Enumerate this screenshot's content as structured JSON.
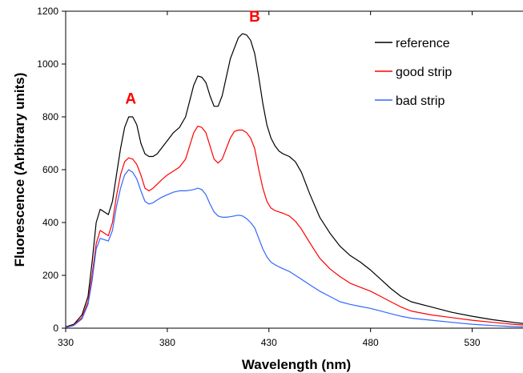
{
  "chart_data": {
    "type": "line",
    "title": "",
    "xlabel": "Wavelength (nm)",
    "ylabel": "Fluorescence (Arbitrary units)",
    "xlim": [
      330,
      555
    ],
    "ylim": [
      0,
      1200
    ],
    "x_ticks": [
      330,
      380,
      430,
      480,
      530
    ],
    "y_ticks": [
      0,
      200,
      400,
      600,
      800,
      1000,
      1200
    ],
    "grid": false,
    "legend_position": "top-right",
    "series": [
      {
        "name": "reference",
        "color": "#000000",
        "points": [
          [
            330,
            5
          ],
          [
            334,
            15
          ],
          [
            338,
            50
          ],
          [
            341,
            120
          ],
          [
            343,
            250
          ],
          [
            345,
            400
          ],
          [
            347,
            450
          ],
          [
            349,
            440
          ],
          [
            351,
            430
          ],
          [
            353,
            480
          ],
          [
            355,
            580
          ],
          [
            357,
            680
          ],
          [
            359,
            760
          ],
          [
            361,
            800
          ],
          [
            363,
            800
          ],
          [
            365,
            770
          ],
          [
            367,
            700
          ],
          [
            369,
            660
          ],
          [
            371,
            650
          ],
          [
            373,
            650
          ],
          [
            375,
            660
          ],
          [
            377,
            680
          ],
          [
            380,
            710
          ],
          [
            383,
            740
          ],
          [
            386,
            760
          ],
          [
            389,
            800
          ],
          [
            391,
            860
          ],
          [
            393,
            920
          ],
          [
            395,
            955
          ],
          [
            397,
            950
          ],
          [
            399,
            930
          ],
          [
            401,
            880
          ],
          [
            403,
            840
          ],
          [
            405,
            840
          ],
          [
            407,
            880
          ],
          [
            409,
            950
          ],
          [
            411,
            1020
          ],
          [
            413,
            1060
          ],
          [
            415,
            1100
          ],
          [
            417,
            1115
          ],
          [
            419,
            1110
          ],
          [
            421,
            1090
          ],
          [
            423,
            1040
          ],
          [
            425,
            950
          ],
          [
            427,
            850
          ],
          [
            429,
            770
          ],
          [
            431,
            720
          ],
          [
            433,
            690
          ],
          [
            435,
            670
          ],
          [
            437,
            660
          ],
          [
            440,
            650
          ],
          [
            443,
            630
          ],
          [
            446,
            590
          ],
          [
            450,
            510
          ],
          [
            455,
            420
          ],
          [
            460,
            360
          ],
          [
            465,
            310
          ],
          [
            470,
            275
          ],
          [
            475,
            250
          ],
          [
            480,
            220
          ],
          [
            485,
            185
          ],
          [
            490,
            150
          ],
          [
            495,
            120
          ],
          [
            500,
            100
          ],
          [
            510,
            80
          ],
          [
            520,
            60
          ],
          [
            530,
            45
          ],
          [
            540,
            32
          ],
          [
            550,
            22
          ],
          [
            555,
            18
          ]
        ]
      },
      {
        "name": "good strip",
        "color": "#ff0000",
        "points": [
          [
            330,
            3
          ],
          [
            334,
            12
          ],
          [
            338,
            40
          ],
          [
            341,
            100
          ],
          [
            343,
            200
          ],
          [
            345,
            320
          ],
          [
            347,
            370
          ],
          [
            349,
            360
          ],
          [
            351,
            350
          ],
          [
            353,
            400
          ],
          [
            355,
            500
          ],
          [
            357,
            580
          ],
          [
            359,
            630
          ],
          [
            361,
            645
          ],
          [
            363,
            640
          ],
          [
            365,
            620
          ],
          [
            367,
            580
          ],
          [
            369,
            530
          ],
          [
            371,
            520
          ],
          [
            373,
            530
          ],
          [
            375,
            545
          ],
          [
            377,
            560
          ],
          [
            380,
            580
          ],
          [
            383,
            595
          ],
          [
            386,
            610
          ],
          [
            389,
            640
          ],
          [
            391,
            690
          ],
          [
            393,
            740
          ],
          [
            395,
            765
          ],
          [
            397,
            760
          ],
          [
            399,
            740
          ],
          [
            401,
            690
          ],
          [
            403,
            640
          ],
          [
            405,
            625
          ],
          [
            407,
            640
          ],
          [
            409,
            680
          ],
          [
            411,
            720
          ],
          [
            413,
            745
          ],
          [
            415,
            750
          ],
          [
            417,
            750
          ],
          [
            419,
            740
          ],
          [
            421,
            720
          ],
          [
            423,
            680
          ],
          [
            425,
            600
          ],
          [
            427,
            530
          ],
          [
            429,
            480
          ],
          [
            431,
            455
          ],
          [
            433,
            445
          ],
          [
            435,
            440
          ],
          [
            437,
            435
          ],
          [
            440,
            425
          ],
          [
            443,
            405
          ],
          [
            446,
            375
          ],
          [
            450,
            325
          ],
          [
            455,
            265
          ],
          [
            460,
            225
          ],
          [
            465,
            195
          ],
          [
            470,
            170
          ],
          [
            475,
            155
          ],
          [
            480,
            140
          ],
          [
            485,
            120
          ],
          [
            490,
            100
          ],
          [
            495,
            80
          ],
          [
            500,
            65
          ],
          [
            510,
            50
          ],
          [
            520,
            40
          ],
          [
            530,
            30
          ],
          [
            540,
            22
          ],
          [
            550,
            15
          ],
          [
            555,
            12
          ]
        ]
      },
      {
        "name": "bad strip",
        "color": "#3366ff",
        "points": [
          [
            330,
            2
          ],
          [
            334,
            10
          ],
          [
            338,
            35
          ],
          [
            341,
            90
          ],
          [
            343,
            180
          ],
          [
            345,
            300
          ],
          [
            347,
            340
          ],
          [
            349,
            335
          ],
          [
            351,
            330
          ],
          [
            353,
            370
          ],
          [
            355,
            460
          ],
          [
            357,
            530
          ],
          [
            359,
            580
          ],
          [
            361,
            600
          ],
          [
            363,
            590
          ],
          [
            365,
            565
          ],
          [
            367,
            520
          ],
          [
            369,
            480
          ],
          [
            371,
            470
          ],
          [
            373,
            475
          ],
          [
            375,
            485
          ],
          [
            377,
            495
          ],
          [
            380,
            505
          ],
          [
            383,
            515
          ],
          [
            386,
            520
          ],
          [
            389,
            520
          ],
          [
            391,
            522
          ],
          [
            393,
            525
          ],
          [
            395,
            530
          ],
          [
            397,
            525
          ],
          [
            399,
            505
          ],
          [
            401,
            470
          ],
          [
            403,
            440
          ],
          [
            405,
            425
          ],
          [
            407,
            420
          ],
          [
            409,
            420
          ],
          [
            411,
            422
          ],
          [
            413,
            425
          ],
          [
            415,
            428
          ],
          [
            417,
            425
          ],
          [
            419,
            415
          ],
          [
            421,
            400
          ],
          [
            423,
            380
          ],
          [
            425,
            340
          ],
          [
            427,
            300
          ],
          [
            429,
            270
          ],
          [
            431,
            250
          ],
          [
            433,
            240
          ],
          [
            435,
            232
          ],
          [
            437,
            225
          ],
          [
            440,
            215
          ],
          [
            443,
            200
          ],
          [
            446,
            185
          ],
          [
            450,
            165
          ],
          [
            455,
            140
          ],
          [
            460,
            120
          ],
          [
            465,
            100
          ],
          [
            470,
            90
          ],
          [
            475,
            82
          ],
          [
            480,
            75
          ],
          [
            485,
            65
          ],
          [
            490,
            55
          ],
          [
            495,
            45
          ],
          [
            500,
            38
          ],
          [
            510,
            30
          ],
          [
            520,
            22
          ],
          [
            530,
            15
          ],
          [
            540,
            10
          ],
          [
            550,
            6
          ],
          [
            555,
            5
          ]
        ]
      }
    ],
    "annotations": [
      {
        "text": "A",
        "x": 362,
        "y": 850,
        "color": "#ff0000"
      },
      {
        "text": "B",
        "x": 423,
        "y": 1160,
        "color": "#ff0000"
      }
    ]
  }
}
